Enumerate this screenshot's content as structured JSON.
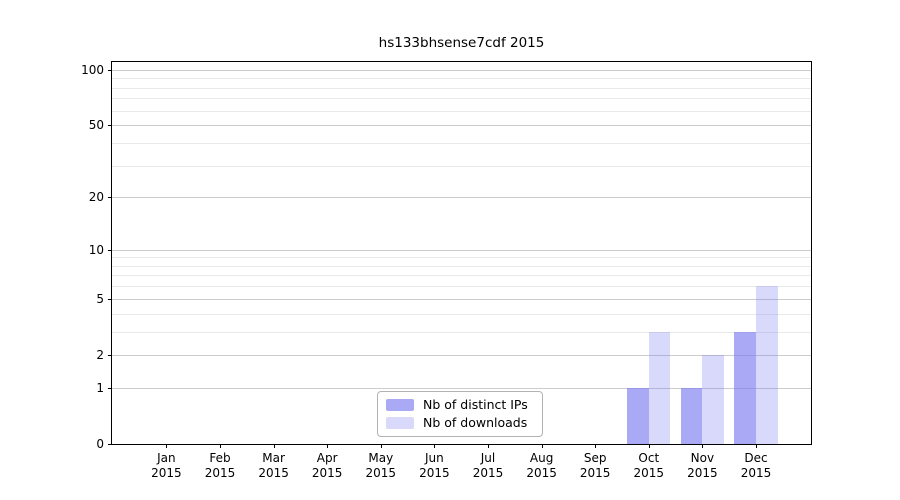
{
  "figure": {
    "background_color": "#ffffff",
    "axes_border_color": "#000000"
  },
  "chart_data": {
    "type": "bar",
    "title": "hs133bhsense7cdf 2015",
    "xlabel": "",
    "ylabel": "",
    "yscale": "log1p",
    "ylim": [
      0,
      110
    ],
    "grid": true,
    "legend_position": "bottom-center-inside",
    "x_ticks": [
      {
        "month": "Jan",
        "year": "2015"
      },
      {
        "month": "Feb",
        "year": "2015"
      },
      {
        "month": "Mar",
        "year": "2015"
      },
      {
        "month": "Apr",
        "year": "2015"
      },
      {
        "month": "May",
        "year": "2015"
      },
      {
        "month": "Jun",
        "year": "2015"
      },
      {
        "month": "Jul",
        "year": "2015"
      },
      {
        "month": "Aug",
        "year": "2015"
      },
      {
        "month": "Sep",
        "year": "2015"
      },
      {
        "month": "Oct",
        "year": "2015"
      },
      {
        "month": "Nov",
        "year": "2015"
      },
      {
        "month": "Dec",
        "year": "2015"
      }
    ],
    "y_major_ticks": [
      0,
      1,
      2,
      5,
      10,
      20,
      50,
      100
    ],
    "y_minor_gridlines": [
      3,
      4,
      6,
      7,
      8,
      9,
      30,
      40,
      60,
      70,
      80,
      90
    ],
    "series": [
      {
        "name": "Nb of distinct IPs",
        "color": "rgba(120,120,240,0.64)",
        "values": [
          0,
          0,
          0,
          0,
          0,
          0,
          0,
          0,
          0,
          1,
          1,
          3
        ]
      },
      {
        "name": "Nb of downloads",
        "color": "rgba(120,120,240,0.28)",
        "values": [
          0,
          0,
          0,
          0,
          0,
          0,
          0,
          0,
          0,
          3,
          2,
          6
        ]
      }
    ]
  }
}
